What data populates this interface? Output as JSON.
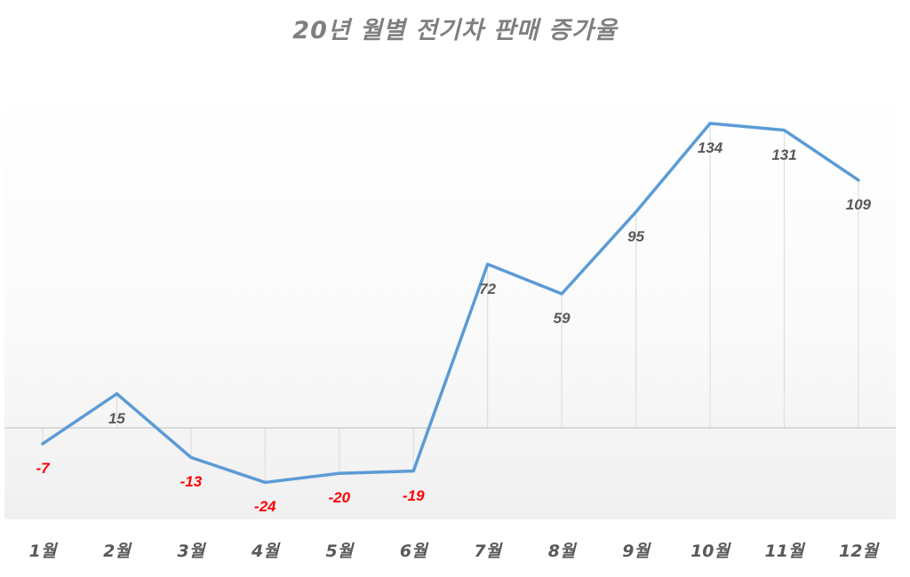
{
  "title": "20년 월별 전기차 판매 증가율",
  "chart_data": {
    "type": "line",
    "title": "20년 월별 전기차 판매 증가율",
    "xlabel": "",
    "ylabel": "",
    "categories": [
      "1월",
      "2월",
      "3월",
      "4월",
      "5월",
      "6월",
      "7월",
      "8월",
      "9월",
      "10월",
      "11월",
      "12월"
    ],
    "series": [
      {
        "name": "증가율",
        "values": [
          -7,
          15,
          -13,
          -24,
          -20,
          -19,
          72,
          59,
          95,
          134,
          131,
          109
        ]
      }
    ],
    "ylim": [
      -40,
      130
    ],
    "grid": "vertical drop lines only",
    "legend": "none",
    "colors": {
      "line": "#5b9bd5",
      "positive_label": "#595959",
      "negative_label": "#ff0000",
      "title": "#7f7f7f",
      "axis": "#d9d9d9"
    }
  },
  "labels": {
    "x": [
      "1월",
      "2월",
      "3월",
      "4월",
      "5월",
      "6월",
      "7월",
      "8월",
      "9월",
      "10월",
      "11월",
      "12월"
    ],
    "values": [
      "-7",
      "15",
      "-13",
      "-24",
      "-20",
      "-19",
      "72",
      "59",
      "95",
      "134",
      "131",
      "109"
    ]
  }
}
